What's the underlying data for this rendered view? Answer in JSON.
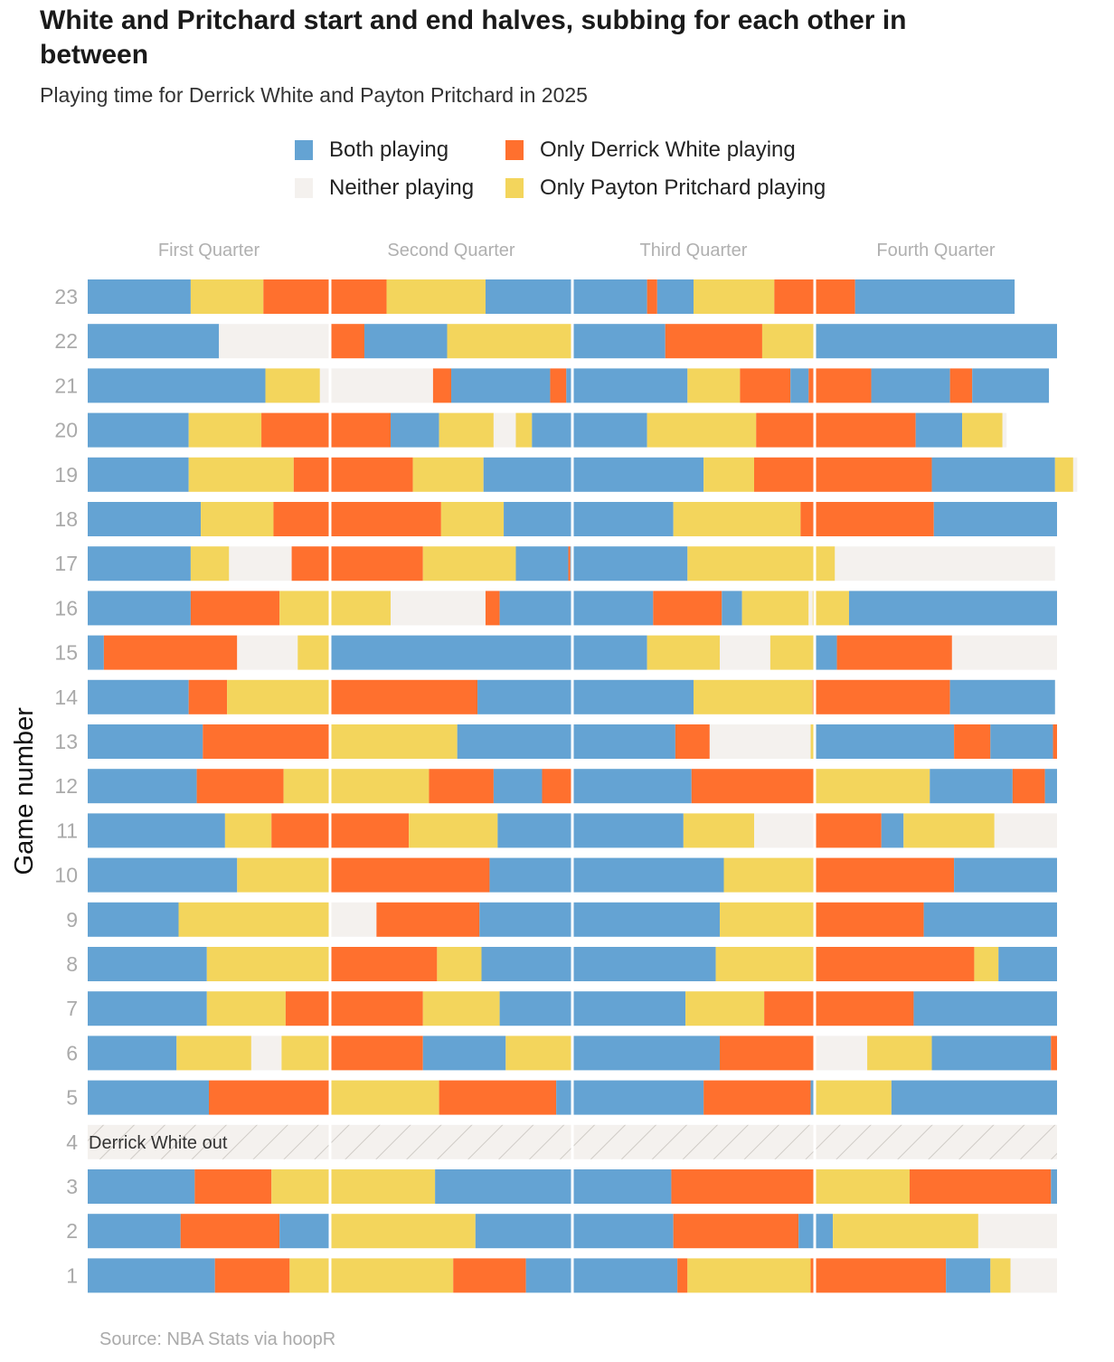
{
  "title": "White and Pritchard start and end halves, subbing for each other in between",
  "subtitle": "Playing time for Derrick White and Payton Pritchard in 2025",
  "source": "Source: NBA Stats via hoopR",
  "colors": {
    "both": "#64a3d3",
    "white_only": "#ff702e",
    "pritchard_only": "#f3d55c",
    "neither": "#f4f1ee",
    "out_hatch": "#cfcbc6",
    "axis_text": "#aaaaaa",
    "quarter_label": "#b0b0b0"
  },
  "legend": [
    {
      "key": "both",
      "label": "Both playing",
      "icon": "blue-square"
    },
    {
      "key": "white_only",
      "label": "Only Derrick White playing",
      "icon": "orange-square"
    },
    {
      "key": "neither",
      "label": "Neither playing",
      "icon": "off-white-square"
    },
    {
      "key": "pritchard_only",
      "label": "Only Payton Pritchard playing",
      "icon": "yellow-square"
    }
  ],
  "chart_data": {
    "type": "bar",
    "orientation": "horizontal-stacked-timeline",
    "title": "White and Pritchard start and end halves, subbing for each other in between",
    "subtitle": "Playing time for Derrick White and Payton Pritchard in 2025",
    "ylabel": "Game number",
    "xlabel": "",
    "x_unit": "game minutes",
    "xlim": [
      0,
      48
    ],
    "quarters": [
      "First Quarter",
      "Second Quarter",
      "Third Quarter",
      "Fourth Quarter"
    ],
    "quarter_length": 12,
    "out_games": [
      {
        "game": 4,
        "label": "Derrick White out"
      }
    ],
    "games": [
      {
        "game": 23,
        "segments": [
          [
            "both",
            5.1
          ],
          [
            "pritchard_only",
            3.6
          ],
          [
            "white_only",
            6.1
          ],
          [
            "pritchard_only",
            4.9
          ],
          [
            "both",
            8.0
          ],
          [
            "white_only",
            0.5
          ],
          [
            "both",
            1.8
          ],
          [
            "pritchard_only",
            4.0
          ],
          [
            "white_only",
            4.0
          ],
          [
            "both",
            7.9
          ]
        ]
      },
      {
        "game": 22,
        "segments": [
          [
            "both",
            6.5
          ],
          [
            "neither",
            5.5
          ],
          [
            "white_only",
            1.7
          ],
          [
            "both",
            4.1
          ],
          [
            "pritchard_only",
            6.2
          ],
          [
            "both",
            4.6
          ],
          [
            "white_only",
            4.8
          ],
          [
            "pritchard_only",
            2.6
          ],
          [
            "both",
            12.0
          ]
        ]
      },
      {
        "game": 21,
        "segments": [
          [
            "both",
            8.8
          ],
          [
            "pritchard_only",
            2.7
          ],
          [
            "neither",
            5.6
          ],
          [
            "white_only",
            0.9
          ],
          [
            "both",
            4.9
          ],
          [
            "white_only",
            0.8
          ],
          [
            "both",
            6.0
          ],
          [
            "pritchard_only",
            2.6
          ],
          [
            "white_only",
            2.5
          ],
          [
            "both",
            0.9
          ],
          [
            "white_only",
            3.1
          ],
          [
            "both",
            3.9
          ],
          [
            "white_only",
            1.1
          ],
          [
            "both",
            3.8
          ]
        ]
      },
      {
        "game": 20,
        "segments": [
          [
            "both",
            5.0
          ],
          [
            "pritchard_only",
            3.6
          ],
          [
            "white_only",
            6.4
          ],
          [
            "both",
            2.4
          ],
          [
            "pritchard_only",
            2.7
          ],
          [
            "neither",
            1.1
          ],
          [
            "pritchard_only",
            0.8
          ],
          [
            "both",
            5.7
          ],
          [
            "pritchard_only",
            5.4
          ],
          [
            "white_only",
            7.9
          ],
          [
            "both",
            2.3
          ],
          [
            "pritchard_only",
            2.0
          ],
          [
            "neither",
            0.2
          ]
        ]
      },
      {
        "game": 19,
        "segments": [
          [
            "both",
            5.0
          ],
          [
            "pritchard_only",
            5.2
          ],
          [
            "white_only",
            5.9
          ],
          [
            "pritchard_only",
            3.5
          ],
          [
            "both",
            10.9
          ],
          [
            "pritchard_only",
            2.5
          ],
          [
            "white_only",
            8.8
          ],
          [
            "both",
            6.1
          ],
          [
            "pritchard_only",
            0.9
          ],
          [
            "neither",
            0.2
          ]
        ]
      },
      {
        "game": 18,
        "segments": [
          [
            "both",
            5.6
          ],
          [
            "pritchard_only",
            3.6
          ],
          [
            "white_only",
            8.3
          ],
          [
            "pritchard_only",
            3.1
          ],
          [
            "both",
            8.4
          ],
          [
            "pritchard_only",
            6.3
          ],
          [
            "white_only",
            6.6
          ],
          [
            "both",
            6.1
          ]
        ]
      },
      {
        "game": 17,
        "segments": [
          [
            "both",
            5.1
          ],
          [
            "pritchard_only",
            1.9
          ],
          [
            "neither",
            3.1
          ],
          [
            "white_only",
            6.5
          ],
          [
            "pritchard_only",
            4.6
          ],
          [
            "both",
            2.6
          ],
          [
            "white_only",
            0.1
          ],
          [
            "both",
            5.8
          ],
          [
            "pritchard_only",
            7.3
          ],
          [
            "neither",
            10.9
          ]
        ]
      },
      {
        "game": 16,
        "segments": [
          [
            "both",
            5.1
          ],
          [
            "white_only",
            4.4
          ],
          [
            "pritchard_only",
            5.5
          ],
          [
            "neither",
            4.7
          ],
          [
            "white_only",
            0.7
          ],
          [
            "both",
            7.6
          ],
          [
            "white_only",
            3.4
          ],
          [
            "both",
            1.0
          ],
          [
            "pritchard_only",
            3.3
          ],
          [
            "neither",
            0.2
          ],
          [
            "pritchard_only",
            1.8
          ],
          [
            "both",
            10.3
          ]
        ]
      },
      {
        "game": 15,
        "segments": [
          [
            "both",
            0.8
          ],
          [
            "white_only",
            6.6
          ],
          [
            "neither",
            3.0
          ],
          [
            "pritchard_only",
            1.6
          ],
          [
            "both",
            15.7
          ],
          [
            "pritchard_only",
            3.6
          ],
          [
            "neither",
            2.5
          ],
          [
            "pritchard_only",
            2.2
          ],
          [
            "both",
            1.1
          ],
          [
            "white_only",
            5.7
          ],
          [
            "neither",
            5.2
          ]
        ]
      },
      {
        "game": 14,
        "segments": [
          [
            "both",
            5.0
          ],
          [
            "white_only",
            1.9
          ],
          [
            "pritchard_only",
            5.1
          ],
          [
            "white_only",
            7.3
          ],
          [
            "both",
            10.7
          ],
          [
            "pritchard_only",
            5.9
          ],
          [
            "white_only",
            6.8
          ],
          [
            "both",
            5.2
          ]
        ]
      },
      {
        "game": 13,
        "segments": [
          [
            "both",
            5.7
          ],
          [
            "white_only",
            6.3
          ],
          [
            "pritchard_only",
            6.3
          ],
          [
            "both",
            10.8
          ],
          [
            "white_only",
            1.7
          ],
          [
            "neither",
            5.0
          ],
          [
            "pritchard_only",
            0.2
          ],
          [
            "both",
            6.9
          ],
          [
            "white_only",
            1.8
          ],
          [
            "both",
            3.1
          ],
          [
            "white_only",
            0.2
          ]
        ]
      },
      {
        "game": 12,
        "segments": [
          [
            "both",
            5.4
          ],
          [
            "white_only",
            4.3
          ],
          [
            "pritchard_only",
            2.3
          ],
          [
            "pritchard_only",
            4.9
          ],
          [
            "white_only",
            3.2
          ],
          [
            "both",
            2.4
          ],
          [
            "white_only",
            1.5
          ],
          [
            "both",
            5.9
          ],
          [
            "white_only",
            6.1
          ],
          [
            "pritchard_only",
            5.7
          ],
          [
            "both",
            4.1
          ],
          [
            "white_only",
            1.6
          ],
          [
            "both",
            0.6
          ]
        ]
      },
      {
        "game": 11,
        "segments": [
          [
            "both",
            6.8
          ],
          [
            "pritchard_only",
            2.3
          ],
          [
            "white_only",
            2.9
          ],
          [
            "white_only",
            3.9
          ],
          [
            "pritchard_only",
            4.4
          ],
          [
            "both",
            3.7
          ],
          [
            "both",
            5.5
          ],
          [
            "pritchard_only",
            3.5
          ],
          [
            "neither",
            3.0
          ],
          [
            "white_only",
            3.3
          ],
          [
            "both",
            1.1
          ],
          [
            "pritchard_only",
            4.5
          ],
          [
            "neither",
            3.1
          ]
        ]
      },
      {
        "game": 10,
        "segments": [
          [
            "both",
            7.4
          ],
          [
            "pritchard_only",
            4.6
          ],
          [
            "white_only",
            7.9
          ],
          [
            "both",
            11.6
          ],
          [
            "pritchard_only",
            4.5
          ],
          [
            "white_only",
            6.9
          ],
          [
            "both",
            5.1
          ]
        ]
      },
      {
        "game": 9,
        "segments": [
          [
            "both",
            4.5
          ],
          [
            "pritchard_only",
            7.5
          ],
          [
            "neither",
            2.3
          ],
          [
            "white_only",
            5.1
          ],
          [
            "both",
            11.9
          ],
          [
            "pritchard_only",
            4.7
          ],
          [
            "white_only",
            5.4
          ],
          [
            "both",
            6.6
          ]
        ]
      },
      {
        "game": 8,
        "segments": [
          [
            "both",
            5.9
          ],
          [
            "pritchard_only",
            6.1
          ],
          [
            "white_only",
            5.3
          ],
          [
            "pritchard_only",
            2.2
          ],
          [
            "both",
            11.6
          ],
          [
            "pritchard_only",
            4.9
          ],
          [
            "white_only",
            7.9
          ],
          [
            "pritchard_only",
            1.2
          ],
          [
            "both",
            2.9
          ]
        ]
      },
      {
        "game": 7,
        "segments": [
          [
            "both",
            5.9
          ],
          [
            "pritchard_only",
            3.9
          ],
          [
            "white_only",
            6.8
          ],
          [
            "pritchard_only",
            3.8
          ],
          [
            "both",
            9.2
          ],
          [
            "pritchard_only",
            3.9
          ],
          [
            "white_only",
            7.4
          ],
          [
            "both",
            7.1
          ]
        ]
      },
      {
        "game": 6,
        "segments": [
          [
            "both",
            4.4
          ],
          [
            "pritchard_only",
            3.7
          ],
          [
            "neither",
            1.5
          ],
          [
            "pritchard_only",
            2.4
          ],
          [
            "white_only",
            4.6
          ],
          [
            "both",
            4.1
          ],
          [
            "pritchard_only",
            3.3
          ],
          [
            "both",
            7.3
          ],
          [
            "white_only",
            4.7
          ],
          [
            "neither",
            2.6
          ],
          [
            "pritchard_only",
            3.2
          ],
          [
            "both",
            5.9
          ],
          [
            "white_only",
            0.3
          ]
        ]
      },
      {
        "game": 5,
        "segments": [
          [
            "both",
            6.0
          ],
          [
            "white_only",
            6.0
          ],
          [
            "pritchard_only",
            5.4
          ],
          [
            "white_only",
            5.8
          ],
          [
            "both",
            7.3
          ],
          [
            "white_only",
            5.3
          ],
          [
            "both",
            0.2
          ],
          [
            "pritchard_only",
            3.8
          ],
          [
            "both",
            8.2
          ]
        ]
      },
      {
        "game": 3,
        "segments": [
          [
            "both",
            5.3
          ],
          [
            "white_only",
            3.8
          ],
          [
            "pritchard_only",
            8.1
          ],
          [
            "both",
            11.7
          ],
          [
            "white_only",
            7.1
          ],
          [
            "pritchard_only",
            4.7
          ],
          [
            "white_only",
            7.0
          ],
          [
            "both",
            0.3
          ]
        ]
      },
      {
        "game": 2,
        "segments": [
          [
            "both",
            4.6
          ],
          [
            "white_only",
            4.9
          ],
          [
            "both",
            2.5
          ],
          [
            "pritchard_only",
            7.2
          ],
          [
            "both",
            9.8
          ],
          [
            "white_only",
            6.2
          ],
          [
            "both",
            1.7
          ],
          [
            "pritchard_only",
            7.2
          ],
          [
            "neither",
            3.9
          ]
        ]
      },
      {
        "game": 1,
        "segments": [
          [
            "both",
            6.3
          ],
          [
            "white_only",
            3.7
          ],
          [
            "pritchard_only",
            8.1
          ],
          [
            "white_only",
            3.6
          ],
          [
            "both",
            7.5
          ],
          [
            "white_only",
            0.5
          ],
          [
            "pritchard_only",
            6.1
          ],
          [
            "white_only",
            6.7
          ],
          [
            "both",
            2.2
          ],
          [
            "pritchard_only",
            1.0
          ],
          [
            "neither",
            2.3
          ]
        ]
      }
    ]
  }
}
